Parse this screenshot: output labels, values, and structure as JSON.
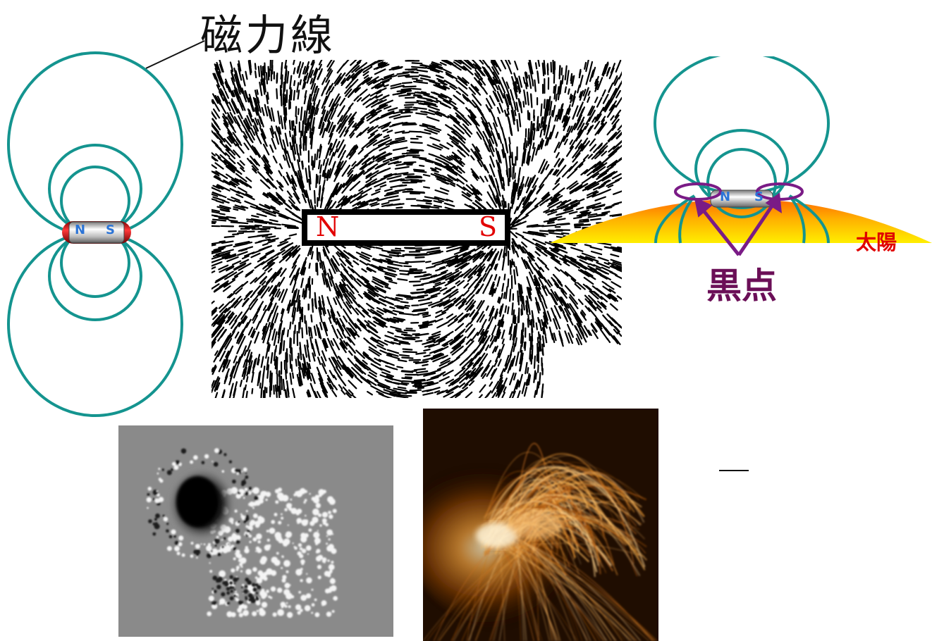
{
  "magnet_field_diagram": {
    "title": "磁力線",
    "magnet_n": "N",
    "magnet_s": "S"
  },
  "iron_filings": {
    "pole_n": "N",
    "pole_s": "S"
  },
  "sun_diagram": {
    "sun_label": "太陽",
    "sunspot_label": "黒点",
    "magnet_n": "N",
    "magnet_s": "S"
  },
  "photos": {
    "magnetogram": "",
    "corona": ""
  },
  "colors": {
    "field_line": "#14948f",
    "sunspot_purple": "#7a1b86",
    "sun_yellow": "#ffe600",
    "sun_orange": "#ff7a00",
    "sun_label_red": "#e00000",
    "pole_blue": "#2c74d6",
    "magnet_red": "#c40000"
  }
}
